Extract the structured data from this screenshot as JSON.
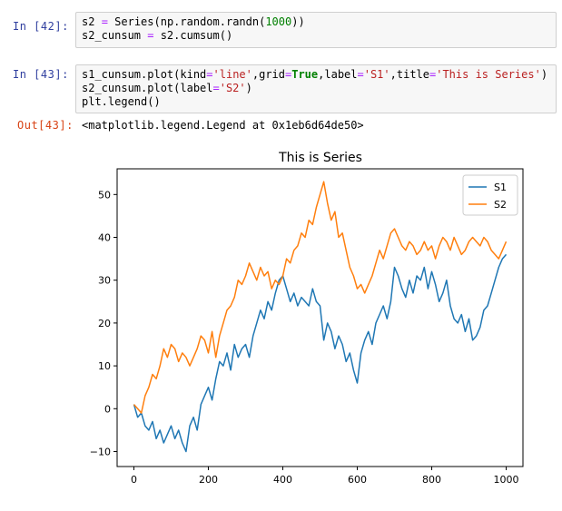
{
  "cells": [
    {
      "prompt": "In  [42]:",
      "lines": [
        [
          {
            "t": "s2 "
          },
          {
            "t": "=",
            "c": "op"
          },
          {
            "t": " Series(np.random.randn("
          },
          {
            "t": "1000",
            "c": "num"
          },
          {
            "t": "))"
          }
        ],
        [
          {
            "t": "s2_cunsum "
          },
          {
            "t": "=",
            "c": "op"
          },
          {
            "t": " s2.cumsum()"
          }
        ]
      ]
    },
    {
      "prompt": "In  [43]:",
      "lines": [
        [
          {
            "t": "s1_cunsum.plot(kind"
          },
          {
            "t": "=",
            "c": "op"
          },
          {
            "t": "'line'",
            "c": "str"
          },
          {
            "t": ",grid"
          },
          {
            "t": "=",
            "c": "op"
          },
          {
            "t": "True",
            "c": "kw"
          },
          {
            "t": ",label"
          },
          {
            "t": "=",
            "c": "op"
          },
          {
            "t": "'S1'",
            "c": "str"
          },
          {
            "t": ",title"
          },
          {
            "t": "=",
            "c": "op"
          },
          {
            "t": "'This is Series'",
            "c": "str"
          },
          {
            "t": ")"
          }
        ],
        [
          {
            "t": "s2_cunsum.plot(label"
          },
          {
            "t": "=",
            "c": "op"
          },
          {
            "t": "'S2'",
            "c": "str"
          },
          {
            "t": ")"
          }
        ],
        [
          {
            "t": "plt.legend()"
          }
        ]
      ]
    }
  ],
  "output": {
    "prompt": "Out[43]:",
    "text": "<matplotlib.legend.Legend at 0x1eb6d64de50>"
  },
  "chart_data": {
    "type": "line",
    "title": "This is Series",
    "xlabel": "",
    "ylabel": "",
    "xlim": [
      -45,
      1045
    ],
    "ylim": [
      -13.5,
      56
    ],
    "xticks": [
      0,
      200,
      400,
      600,
      800,
      1000
    ],
    "yticks": [
      -10,
      0,
      10,
      20,
      30,
      40,
      50
    ],
    "grid": false,
    "legend_position": "top-right",
    "series": [
      {
        "name": "S1",
        "color": "#1f77b4",
        "x": [
          0,
          10,
          20,
          30,
          40,
          50,
          60,
          70,
          80,
          90,
          100,
          110,
          120,
          130,
          140,
          150,
          160,
          170,
          180,
          190,
          200,
          210,
          220,
          230,
          240,
          250,
          260,
          270,
          280,
          290,
          300,
          310,
          320,
          330,
          340,
          350,
          360,
          370,
          380,
          390,
          400,
          410,
          420,
          430,
          440,
          450,
          460,
          470,
          480,
          490,
          500,
          510,
          520,
          530,
          540,
          550,
          560,
          570,
          580,
          590,
          600,
          610,
          620,
          630,
          640,
          650,
          660,
          670,
          680,
          690,
          700,
          710,
          720,
          730,
          740,
          750,
          760,
          770,
          780,
          790,
          800,
          810,
          820,
          830,
          840,
          850,
          860,
          870,
          880,
          890,
          900,
          910,
          920,
          930,
          940,
          950,
          960,
          970,
          980,
          990,
          1000
        ],
        "y": [
          1,
          -2,
          -1,
          -4,
          -5,
          -3,
          -7,
          -5,
          -8,
          -6,
          -4,
          -7,
          -5,
          -8,
          -10,
          -4,
          -2,
          -5,
          1,
          3,
          5,
          2,
          7,
          11,
          10,
          13,
          9,
          15,
          12,
          14,
          15,
          12,
          17,
          20,
          23,
          21,
          25,
          23,
          27,
          30,
          31,
          28,
          25,
          27,
          24,
          26,
          25,
          24,
          28,
          25,
          24,
          16,
          20,
          18,
          14,
          17,
          15,
          11,
          13,
          9,
          6,
          13,
          16,
          18,
          15,
          20,
          22,
          24,
          21,
          25,
          33,
          31,
          28,
          26,
          30,
          27,
          31,
          30,
          33,
          28,
          32,
          29,
          25,
          27,
          30,
          24,
          21,
          20,
          22,
          18,
          21,
          16,
          17,
          19,
          23,
          24,
          27,
          30,
          33,
          35,
          36
        ]
      },
      {
        "name": "S2",
        "color": "#ff7f0e",
        "x": [
          0,
          10,
          20,
          30,
          40,
          50,
          60,
          70,
          80,
          90,
          100,
          110,
          120,
          130,
          140,
          150,
          160,
          170,
          180,
          190,
          200,
          210,
          220,
          230,
          240,
          250,
          260,
          270,
          280,
          290,
          300,
          310,
          320,
          330,
          340,
          350,
          360,
          370,
          380,
          390,
          400,
          410,
          420,
          430,
          440,
          450,
          460,
          470,
          480,
          490,
          500,
          510,
          520,
          530,
          540,
          550,
          560,
          570,
          580,
          590,
          600,
          610,
          620,
          630,
          640,
          650,
          660,
          670,
          680,
          690,
          700,
          710,
          720,
          730,
          740,
          750,
          760,
          770,
          780,
          790,
          800,
          810,
          820,
          830,
          840,
          850,
          860,
          870,
          880,
          890,
          900,
          910,
          920,
          930,
          940,
          950,
          960,
          970,
          980,
          990,
          1000
        ],
        "y": [
          1,
          0,
          -1,
          3,
          5,
          8,
          7,
          10,
          14,
          12,
          15,
          14,
          11,
          13,
          12,
          10,
          12,
          14,
          17,
          16,
          13,
          18,
          12,
          17,
          20,
          23,
          24,
          26,
          30,
          29,
          31,
          34,
          32,
          30,
          33,
          31,
          32,
          28,
          30,
          29,
          31,
          35,
          34,
          37,
          38,
          41,
          40,
          44,
          43,
          47,
          50,
          53,
          48,
          44,
          46,
          40,
          41,
          37,
          33,
          31,
          28,
          29,
          27,
          29,
          31,
          34,
          37,
          35,
          38,
          41,
          42,
          40,
          38,
          37,
          39,
          38,
          36,
          37,
          39,
          37,
          38,
          35,
          38,
          40,
          39,
          37,
          40,
          38,
          36,
          37,
          39,
          40,
          39,
          38,
          40,
          39,
          37,
          36,
          35,
          37,
          39
        ]
      }
    ]
  }
}
